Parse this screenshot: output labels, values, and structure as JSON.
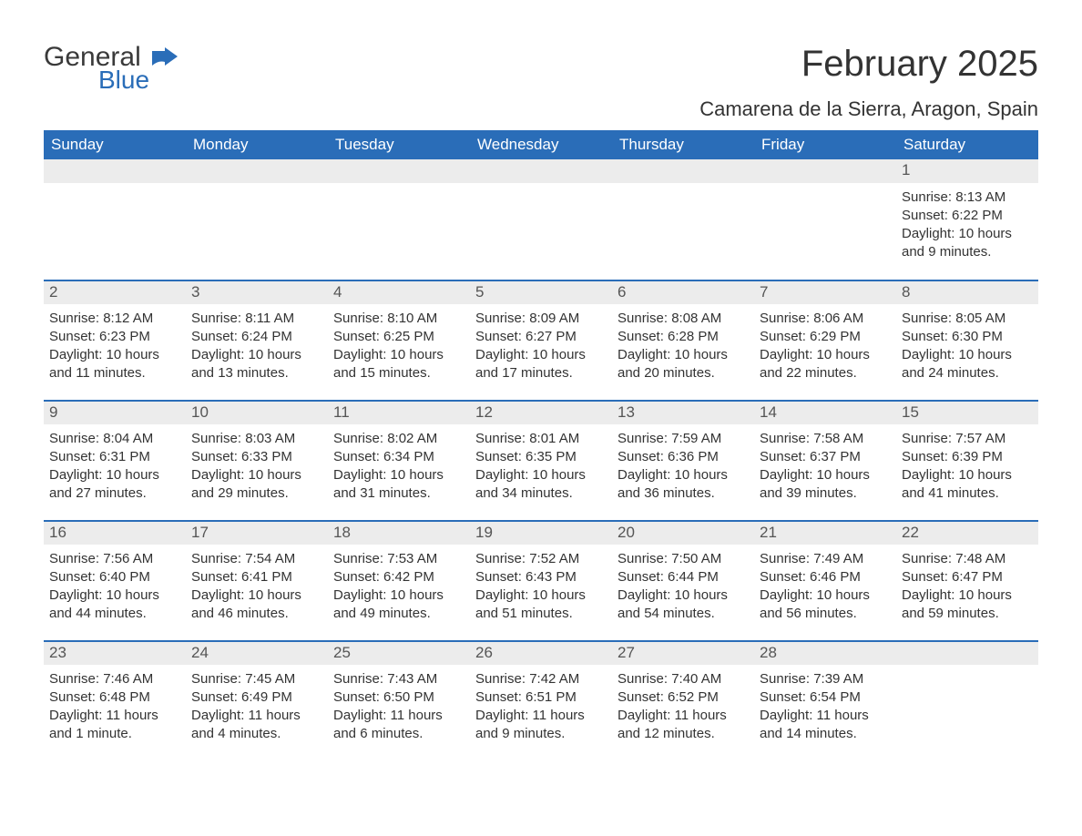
{
  "logo": {
    "general": "General",
    "blue": "Blue"
  },
  "title": "February 2025",
  "location": "Camarena de la Sierra, Aragon, Spain",
  "colors": {
    "header_bg": "#2a6db8",
    "header_text": "#ffffff",
    "daynum_bg": "#ececec",
    "text": "#333333",
    "rule": "#2a6db8",
    "page_bg": "#ffffff"
  },
  "day_names": [
    "Sunday",
    "Monday",
    "Tuesday",
    "Wednesday",
    "Thursday",
    "Friday",
    "Saturday"
  ],
  "weeks": [
    [
      null,
      null,
      null,
      null,
      null,
      null,
      {
        "d": "1",
        "sr": "Sunrise: 8:13 AM",
        "ss": "Sunset: 6:22 PM",
        "dl1": "Daylight: 10 hours",
        "dl2": "and 9 minutes."
      }
    ],
    [
      {
        "d": "2",
        "sr": "Sunrise: 8:12 AM",
        "ss": "Sunset: 6:23 PM",
        "dl1": "Daylight: 10 hours",
        "dl2": "and 11 minutes."
      },
      {
        "d": "3",
        "sr": "Sunrise: 8:11 AM",
        "ss": "Sunset: 6:24 PM",
        "dl1": "Daylight: 10 hours",
        "dl2": "and 13 minutes."
      },
      {
        "d": "4",
        "sr": "Sunrise: 8:10 AM",
        "ss": "Sunset: 6:25 PM",
        "dl1": "Daylight: 10 hours",
        "dl2": "and 15 minutes."
      },
      {
        "d": "5",
        "sr": "Sunrise: 8:09 AM",
        "ss": "Sunset: 6:27 PM",
        "dl1": "Daylight: 10 hours",
        "dl2": "and 17 minutes."
      },
      {
        "d": "6",
        "sr": "Sunrise: 8:08 AM",
        "ss": "Sunset: 6:28 PM",
        "dl1": "Daylight: 10 hours",
        "dl2": "and 20 minutes."
      },
      {
        "d": "7",
        "sr": "Sunrise: 8:06 AM",
        "ss": "Sunset: 6:29 PM",
        "dl1": "Daylight: 10 hours",
        "dl2": "and 22 minutes."
      },
      {
        "d": "8",
        "sr": "Sunrise: 8:05 AM",
        "ss": "Sunset: 6:30 PM",
        "dl1": "Daylight: 10 hours",
        "dl2": "and 24 minutes."
      }
    ],
    [
      {
        "d": "9",
        "sr": "Sunrise: 8:04 AM",
        "ss": "Sunset: 6:31 PM",
        "dl1": "Daylight: 10 hours",
        "dl2": "and 27 minutes."
      },
      {
        "d": "10",
        "sr": "Sunrise: 8:03 AM",
        "ss": "Sunset: 6:33 PM",
        "dl1": "Daylight: 10 hours",
        "dl2": "and 29 minutes."
      },
      {
        "d": "11",
        "sr": "Sunrise: 8:02 AM",
        "ss": "Sunset: 6:34 PM",
        "dl1": "Daylight: 10 hours",
        "dl2": "and 31 minutes."
      },
      {
        "d": "12",
        "sr": "Sunrise: 8:01 AM",
        "ss": "Sunset: 6:35 PM",
        "dl1": "Daylight: 10 hours",
        "dl2": "and 34 minutes."
      },
      {
        "d": "13",
        "sr": "Sunrise: 7:59 AM",
        "ss": "Sunset: 6:36 PM",
        "dl1": "Daylight: 10 hours",
        "dl2": "and 36 minutes."
      },
      {
        "d": "14",
        "sr": "Sunrise: 7:58 AM",
        "ss": "Sunset: 6:37 PM",
        "dl1": "Daylight: 10 hours",
        "dl2": "and 39 minutes."
      },
      {
        "d": "15",
        "sr": "Sunrise: 7:57 AM",
        "ss": "Sunset: 6:39 PM",
        "dl1": "Daylight: 10 hours",
        "dl2": "and 41 minutes."
      }
    ],
    [
      {
        "d": "16",
        "sr": "Sunrise: 7:56 AM",
        "ss": "Sunset: 6:40 PM",
        "dl1": "Daylight: 10 hours",
        "dl2": "and 44 minutes."
      },
      {
        "d": "17",
        "sr": "Sunrise: 7:54 AM",
        "ss": "Sunset: 6:41 PM",
        "dl1": "Daylight: 10 hours",
        "dl2": "and 46 minutes."
      },
      {
        "d": "18",
        "sr": "Sunrise: 7:53 AM",
        "ss": "Sunset: 6:42 PM",
        "dl1": "Daylight: 10 hours",
        "dl2": "and 49 minutes."
      },
      {
        "d": "19",
        "sr": "Sunrise: 7:52 AM",
        "ss": "Sunset: 6:43 PM",
        "dl1": "Daylight: 10 hours",
        "dl2": "and 51 minutes."
      },
      {
        "d": "20",
        "sr": "Sunrise: 7:50 AM",
        "ss": "Sunset: 6:44 PM",
        "dl1": "Daylight: 10 hours",
        "dl2": "and 54 minutes."
      },
      {
        "d": "21",
        "sr": "Sunrise: 7:49 AM",
        "ss": "Sunset: 6:46 PM",
        "dl1": "Daylight: 10 hours",
        "dl2": "and 56 minutes."
      },
      {
        "d": "22",
        "sr": "Sunrise: 7:48 AM",
        "ss": "Sunset: 6:47 PM",
        "dl1": "Daylight: 10 hours",
        "dl2": "and 59 minutes."
      }
    ],
    [
      {
        "d": "23",
        "sr": "Sunrise: 7:46 AM",
        "ss": "Sunset: 6:48 PM",
        "dl1": "Daylight: 11 hours",
        "dl2": "and 1 minute."
      },
      {
        "d": "24",
        "sr": "Sunrise: 7:45 AM",
        "ss": "Sunset: 6:49 PM",
        "dl1": "Daylight: 11 hours",
        "dl2": "and 4 minutes."
      },
      {
        "d": "25",
        "sr": "Sunrise: 7:43 AM",
        "ss": "Sunset: 6:50 PM",
        "dl1": "Daylight: 11 hours",
        "dl2": "and 6 minutes."
      },
      {
        "d": "26",
        "sr": "Sunrise: 7:42 AM",
        "ss": "Sunset: 6:51 PM",
        "dl1": "Daylight: 11 hours",
        "dl2": "and 9 minutes."
      },
      {
        "d": "27",
        "sr": "Sunrise: 7:40 AM",
        "ss": "Sunset: 6:52 PM",
        "dl1": "Daylight: 11 hours",
        "dl2": "and 12 minutes."
      },
      {
        "d": "28",
        "sr": "Sunrise: 7:39 AM",
        "ss": "Sunset: 6:54 PM",
        "dl1": "Daylight: 11 hours",
        "dl2": "and 14 minutes."
      },
      null
    ]
  ]
}
